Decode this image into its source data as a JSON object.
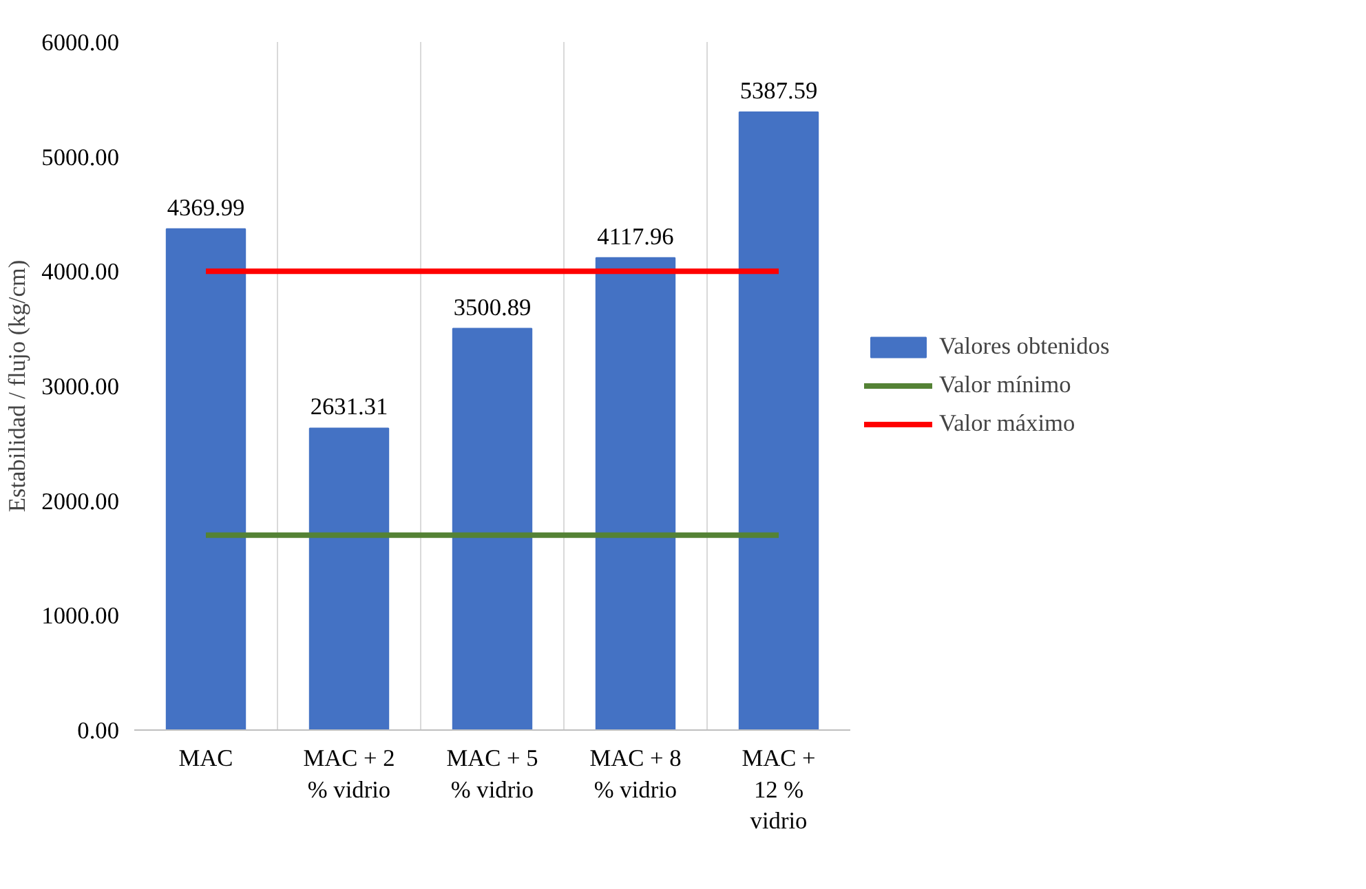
{
  "chart_data": {
    "type": "bar",
    "ylabel": "Estabilidad / flujo (kg/cm)",
    "categories": [
      "MAC",
      "MAC + 2\n% vidrio",
      "MAC + 5\n% vidrio",
      "MAC + 8\n% vidrio",
      "MAC +\n12 %\nvidrio"
    ],
    "series": [
      {
        "name": "Valores obtenidos",
        "color": "#4472c4",
        "values": [
          4369.99,
          2631.31,
          3500.89,
          4117.96,
          5387.59
        ],
        "data_labels": true
      },
      {
        "name": "Valor mínimo",
        "color": "#548235",
        "type": "line",
        "values": [
          1700,
          1700,
          1700,
          1700,
          1700
        ]
      },
      {
        "name": "Valor máximo",
        "color": "#ff0000",
        "type": "line",
        "values": [
          4000,
          4000,
          4000,
          4000,
          4000
        ]
      }
    ],
    "ylim": [
      0,
      6000
    ],
    "yticks": [
      {
        "value": 0,
        "label": "0.00"
      },
      {
        "value": 1000,
        "label": "1000.00"
      },
      {
        "value": 2000,
        "label": "2000.00"
      },
      {
        "value": 3000,
        "label": "3000.00"
      },
      {
        "value": 4000,
        "label": "4000.00"
      },
      {
        "value": 5000,
        "label": "5000.00"
      },
      {
        "value": 6000,
        "label": "6000.00"
      }
    ],
    "grid": "x",
    "legend": "right"
  }
}
